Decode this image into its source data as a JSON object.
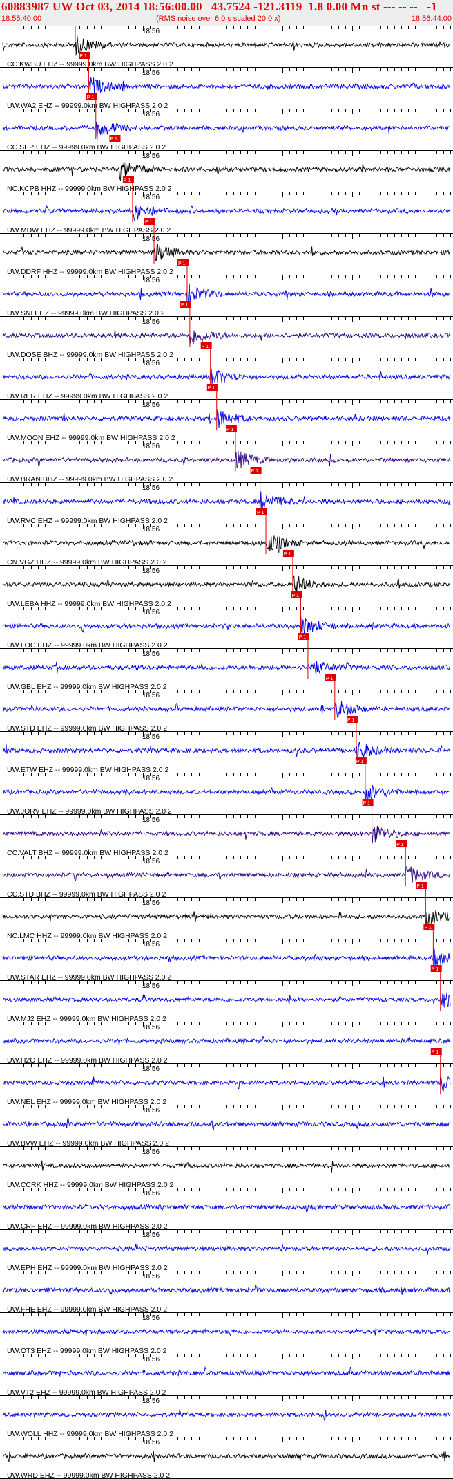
{
  "header": {
    "title": "60883987 UW Oct 03, 2014 18:56:00.00   43.7524 -121.3119  1.8 0.00 Mn st --- -- --   -1",
    "start_time": "18:55:40.00",
    "end_time": "18:56:44.00",
    "note": "(RMS noise over 6.0 s scaled 20.0 x)"
  },
  "minute_label": "18:56",
  "pick_label": "P 1",
  "traces": [
    {
      "label": "CC.KWBU EHZ -- 99999.0km BW  HIGHPASS  2.0  2",
      "color": "#000000",
      "pick": 0.162
    },
    {
      "label": "UW.WA2 EHZ -- 99999.0km BW  HIGHPASS  2.0  2",
      "color": "#0000e0",
      "pick": 0.192
    },
    {
      "label": "CC.SEP EHZ -- 99999.0km BW  HIGHPASS  2.0  2",
      "color": "#0000e0",
      "pick": 0.208
    },
    {
      "label": "NC.KCPB HHZ -- 99999.0km BW  HIGHPASS  2.0  2",
      "color": "#000000",
      "pick": 0.26
    },
    {
      "label": "UW.MDW EHZ -- 99999.0km BW  HIGHPASS  2.0  2",
      "color": "#0000e0",
      "pick": 0.29
    },
    {
      "label": "UW.DDRF HHZ -- 99999.0km BW  HIGHPASS  2.0  2",
      "color": "#000000",
      "pick": 0.338
    },
    {
      "label": "UW.SNI EHZ -- 99999.0km BW  HIGHPASS  2.0  2",
      "color": "#0000e0",
      "pick": 0.412
    },
    {
      "label": "UW.DOSE BHZ -- 99999.0km BW  HIGHPASS  2.0  2",
      "color": "#2a0080",
      "pick": 0.418
    },
    {
      "label": "UW.RER EHZ -- 99999.0km BW  HIGHPASS  2.0  2",
      "color": "#0000e0",
      "pick": 0.464
    },
    {
      "label": "UW.MOON EHZ -- 99999.0km BW  HIGHPASS  2.0  2",
      "color": "#0000e0",
      "pick": 0.478
    },
    {
      "label": "UW.BRAN BHZ -- 99999.0km BW  HIGHPASS  2.0  2",
      "color": "#2a0080",
      "pick": 0.52
    },
    {
      "label": "UW.RVC EHZ -- 99999.0km BW  HIGHPASS  2.0  2",
      "color": "#0000e0",
      "pick": 0.575
    },
    {
      "label": "CN.VGZ HHZ -- 99999.0km BW  HIGHPASS  2.0  2",
      "color": "#000000",
      "pick": 0.588
    },
    {
      "label": "UW.LEBA HHZ -- 99999.0km BW  HIGHPASS  2.0  2",
      "color": "#000000",
      "pick": 0.648
    },
    {
      "label": "UW.LOC EHZ -- 99999.0km BW  HIGHPASS  2.0  2",
      "color": "#0000e0",
      "pick": 0.666
    },
    {
      "label": "UW.GBL EHZ -- 99999.0km BW  HIGHPASS  2.0  2",
      "color": "#0000e0",
      "pick": 0.682
    },
    {
      "label": "UW.STD EHZ -- 99999.0km BW  HIGHPASS  2.0  2",
      "color": "#0000e0",
      "pick": 0.742
    },
    {
      "label": "UW.ETW EHZ -- 99999.0km BW  HIGHPASS  2.0  2",
      "color": "#0000e0",
      "pick": 0.79
    },
    {
      "label": "UW.JORV EHZ -- 99999.0km BW  HIGHPASS  2.0  2",
      "color": "#0000e0",
      "pick": 0.81
    },
    {
      "label": "CC.VALT BHZ -- 99999.0km BW  HIGHPASS  2.0  2",
      "color": "#2a0080",
      "pick": 0.825
    },
    {
      "label": "CC.STD BHZ -- 99999.0km BW  HIGHPASS  2.0  2",
      "color": "#2a0080",
      "pick": 0.9
    },
    {
      "label": "NC.LMC HHZ -- 99999.0km BW  HIGHPASS  2.0  2",
      "color": "#000000",
      "pick": 0.945
    },
    {
      "label": "UW.STAR EHZ -- 99999.0km BW  HIGHPASS  2.0  2",
      "color": "#0000e0",
      "pick": 0.962
    },
    {
      "label": "UW.MJ2 EHZ -- 99999.0km BW  HIGHPASS  2.0  2",
      "color": "#0000e0",
      "pick": 0.978
    },
    {
      "label": "UW.H2O EHZ -- 99999.0km BW  HIGHPASS  2.0  2",
      "color": "#0000e0",
      "pick": null
    },
    {
      "label": "UW.NEL EHZ -- 99999.0km BW  HIGHPASS  2.0  2",
      "color": "#0000e0",
      "pick": 0.978
    },
    {
      "label": "UW.BVW EHZ -- 99999.0km BW  HIGHPASS  2.0  2",
      "color": "#0000e0",
      "pick": null
    },
    {
      "label": "UW.CCRK HHZ -- 99999.0km BW  HIGHPASS  2.0  2",
      "color": "#000000",
      "pick": null
    },
    {
      "label": "UW.CRF EHZ -- 99999.0km BW  HIGHPASS  2.0  2",
      "color": "#0000e0",
      "pick": null
    },
    {
      "label": "UW.EPH EHZ -- 99999.0km BW  HIGHPASS  2.0  2",
      "color": "#0000e0",
      "pick": null
    },
    {
      "label": "UW.FHE EHZ -- 99999.0km BW  HIGHPASS  2.0  2",
      "color": "#0000e0",
      "pick": null
    },
    {
      "label": "UW.OT3 EHZ -- 99999.0km BW  HIGHPASS  2.0  2",
      "color": "#0000e0",
      "pick": null
    },
    {
      "label": "UW.VT2 EHZ -- 99999.0km BW  HIGHPASS  2.0  2",
      "color": "#0000e0",
      "pick": null
    },
    {
      "label": "UW.WOLL HHZ -- 99999.0km BW  HIGHPASS  2.0  2",
      "color": "#0000e0",
      "pick": null
    },
    {
      "label": "UW.WRD EHZ -- 99999.0km BW  HIGHPASS  2.0  2",
      "color": "#000000",
      "pick": null
    },
    {
      "label": "",
      "color": "#0000e0",
      "pick": null
    }
  ]
}
